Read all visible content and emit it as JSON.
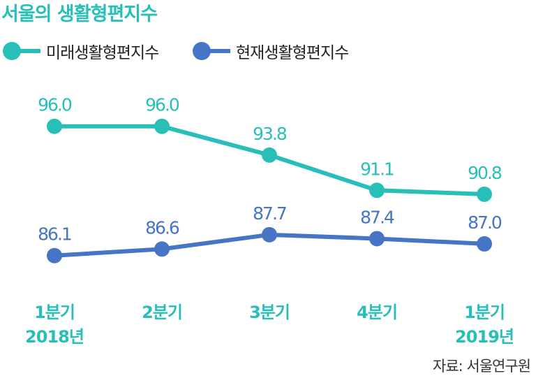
{
  "title": "서울의 생활형편지수",
  "colors": {
    "future": "#27bfb8",
    "current": "#4575c4",
    "title": "#27bfb8",
    "axis_label": "#27bfb8",
    "source": "#333333"
  },
  "legend": [
    {
      "label": "미래생활형편지수",
      "color": "#27bfb8"
    },
    {
      "label": "현재생활형편지수",
      "color": "#4575c4"
    }
  ],
  "source": "자료: 서울연구원",
  "chart_data": {
    "type": "line",
    "title": "서울의 생활형편지수",
    "categories": [
      {
        "quarter": "1분기",
        "year": "2018년"
      },
      {
        "quarter": "2분기",
        "year": ""
      },
      {
        "quarter": "3분기",
        "year": ""
      },
      {
        "quarter": "4분기",
        "year": ""
      },
      {
        "quarter": "1분기",
        "year": "2019년"
      }
    ],
    "series": [
      {
        "name": "미래생활형편지수",
        "color": "#27bfb8",
        "values": [
          96.0,
          96.0,
          93.8,
          91.1,
          90.8
        ],
        "labels": [
          "96.0",
          "96.0",
          "93.8",
          "91.1",
          "90.8"
        ]
      },
      {
        "name": "현재생활형편지수",
        "color": "#4575c4",
        "values": [
          86.1,
          86.6,
          87.7,
          87.4,
          87.0
        ],
        "labels": [
          "86.1",
          "86.6",
          "87.7",
          "87.4",
          "87.0"
        ]
      }
    ],
    "xlabel": "",
    "ylabel": "",
    "ylim": [
      82.5,
      100
    ],
    "grid": false,
    "legend_position": "top-left"
  }
}
